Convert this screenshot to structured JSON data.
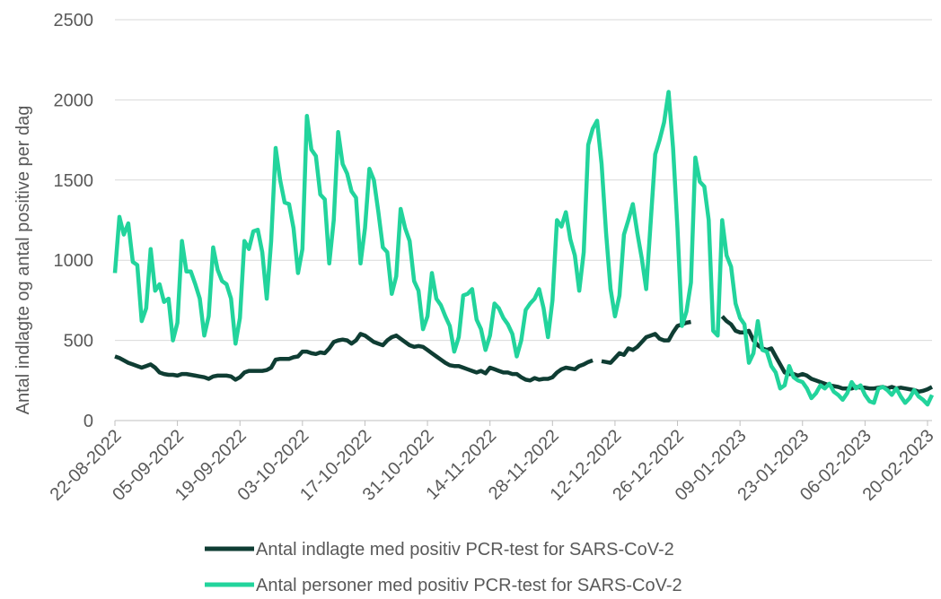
{
  "chart_data": {
    "type": "line",
    "y_label": "Antal indlagte og antal positive per dag",
    "x": [
      "22-08-2022",
      "23-08-2022",
      "24-08-2022",
      "25-08-2022",
      "26-08-2022",
      "27-08-2022",
      "28-08-2022",
      "29-08-2022",
      "30-08-2022",
      "31-08-2022",
      "01-09-2022",
      "02-09-2022",
      "03-09-2022",
      "04-09-2022",
      "05-09-2022",
      "06-09-2022",
      "07-09-2022",
      "08-09-2022",
      "09-09-2022",
      "10-09-2022",
      "11-09-2022",
      "12-09-2022",
      "13-09-2022",
      "14-09-2022",
      "15-09-2022",
      "16-09-2022",
      "17-09-2022",
      "18-09-2022",
      "19-09-2022",
      "20-09-2022",
      "21-09-2022",
      "22-09-2022",
      "23-09-2022",
      "24-09-2022",
      "25-09-2022",
      "26-09-2022",
      "27-09-2022",
      "28-09-2022",
      "29-09-2022",
      "30-09-2022",
      "01-10-2022",
      "02-10-2022",
      "03-10-2022",
      "04-10-2022",
      "05-10-2022",
      "06-10-2022",
      "07-10-2022",
      "08-10-2022",
      "09-10-2022",
      "10-10-2022",
      "11-10-2022",
      "12-10-2022",
      "13-10-2022",
      "14-10-2022",
      "15-10-2022",
      "16-10-2022",
      "17-10-2022",
      "18-10-2022",
      "19-10-2022",
      "20-10-2022",
      "21-10-2022",
      "22-10-2022",
      "23-10-2022",
      "24-10-2022",
      "25-10-2022",
      "26-10-2022",
      "27-10-2022",
      "28-10-2022",
      "29-10-2022",
      "30-10-2022",
      "31-10-2022",
      "01-11-2022",
      "02-11-2022",
      "03-11-2022",
      "04-11-2022",
      "05-11-2022",
      "06-11-2022",
      "07-11-2022",
      "08-11-2022",
      "09-11-2022",
      "10-11-2022",
      "11-11-2022",
      "12-11-2022",
      "13-11-2022",
      "14-11-2022",
      "15-11-2022",
      "16-11-2022",
      "17-11-2022",
      "18-11-2022",
      "19-11-2022",
      "20-11-2022",
      "21-11-2022",
      "22-11-2022",
      "23-11-2022",
      "24-11-2022",
      "25-11-2022",
      "26-11-2022",
      "27-11-2022",
      "28-11-2022",
      "29-11-2022",
      "30-11-2022",
      "01-12-2022",
      "02-12-2022",
      "03-12-2022",
      "04-12-2022",
      "05-12-2022",
      "06-12-2022",
      "07-12-2022",
      "08-12-2022",
      "09-12-2022",
      "10-12-2022",
      "11-12-2022",
      "12-12-2022",
      "13-12-2022",
      "14-12-2022",
      "15-12-2022",
      "16-12-2022",
      "17-12-2022",
      "18-12-2022",
      "19-12-2022",
      "20-12-2022",
      "21-12-2022",
      "22-12-2022",
      "23-12-2022",
      "24-12-2022",
      "25-12-2022",
      "26-12-2022",
      "27-12-2022",
      "28-12-2022",
      "29-12-2022",
      "30-12-2022",
      "31-12-2022",
      "01-01-2023",
      "02-01-2023",
      "03-01-2023",
      "04-01-2023",
      "05-01-2023",
      "06-01-2023",
      "07-01-2023",
      "08-01-2023",
      "09-01-2023",
      "10-01-2023",
      "11-01-2023",
      "12-01-2023",
      "13-01-2023",
      "14-01-2023",
      "15-01-2023",
      "16-01-2023",
      "17-01-2023",
      "18-01-2023",
      "19-01-2023",
      "20-01-2023",
      "21-01-2023",
      "22-01-2023",
      "23-01-2023",
      "24-01-2023",
      "25-01-2023",
      "26-01-2023",
      "27-01-2023",
      "28-01-2023",
      "29-01-2023",
      "30-01-2023",
      "31-01-2023",
      "01-02-2023",
      "02-02-2023",
      "03-02-2023",
      "04-02-2023",
      "05-02-2023",
      "06-02-2023",
      "07-02-2023",
      "08-02-2023",
      "09-02-2023",
      "10-02-2023",
      "11-02-2023",
      "12-02-2023",
      "13-02-2023",
      "14-02-2023",
      "15-02-2023",
      "16-02-2023",
      "17-02-2023",
      "18-02-2023",
      "19-02-2023",
      "20-02-2023",
      "21-02-2023"
    ],
    "xticks": [
      "22-08-2022",
      "05-09-2022",
      "19-09-2022",
      "03-10-2022",
      "17-10-2022",
      "31-10-2022",
      "14-11-2022",
      "28-11-2022",
      "12-12-2022",
      "26-12-2022",
      "09-01-2023",
      "23-01-2023",
      "06-02-2023",
      "20-02-2023"
    ],
    "ylim": [
      0,
      2500
    ],
    "yticks": [
      0,
      500,
      1000,
      1500,
      2000,
      2500
    ],
    "grid": true,
    "series": [
      {
        "name": "Antal indlagte med positiv PCR-test for SARS-CoV-2",
        "color": "#0f3d33",
        "values": [
          400,
          390,
          375,
          360,
          350,
          340,
          330,
          340,
          350,
          330,
          300,
          290,
          285,
          285,
          280,
          290,
          290,
          285,
          280,
          275,
          270,
          260,
          275,
          280,
          280,
          280,
          275,
          255,
          270,
          300,
          310,
          310,
          310,
          310,
          315,
          330,
          380,
          385,
          385,
          385,
          395,
          400,
          430,
          430,
          420,
          415,
          425,
          420,
          450,
          490,
          500,
          505,
          500,
          480,
          500,
          540,
          530,
          510,
          490,
          480,
          470,
          500,
          520,
          530,
          510,
          490,
          470,
          460,
          465,
          460,
          440,
          420,
          400,
          380,
          360,
          345,
          340,
          340,
          330,
          320,
          310,
          300,
          310,
          295,
          330,
          320,
          310,
          300,
          300,
          290,
          290,
          270,
          255,
          250,
          265,
          255,
          260,
          260,
          270,
          300,
          320,
          330,
          325,
          320,
          340,
          350,
          365,
          375,
          null,
          370,
          365,
          360,
          390,
          420,
          410,
          450,
          440,
          460,
          490,
          520,
          530,
          540,
          510,
          500,
          500,
          550,
          590,
          600,
          610,
          615,
          null,
          null,
          null,
          null,
          null,
          null,
          650,
          620,
          600,
          560,
          550,
          550,
          560,
          500,
          470,
          450,
          440,
          450,
          400,
          350,
          300,
          290,
          290,
          280,
          290,
          280,
          260,
          250,
          240,
          230,
          220,
          215,
          210,
          200,
          200,
          200,
          210,
          205,
          205,
          200,
          200,
          205,
          210,
          200,
          210,
          200,
          205,
          200,
          195,
          190,
          180,
          185,
          195,
          210
        ]
      },
      {
        "name": "Antal personer med positiv PCR-test for SARS-CoV-2",
        "color": "#22d49c",
        "values": [
          920,
          1270,
          1160,
          1230,
          990,
          970,
          620,
          700,
          1070,
          810,
          850,
          740,
          760,
          500,
          610,
          1120,
          930,
          930,
          850,
          760,
          530,
          650,
          1080,
          940,
          870,
          850,
          760,
          480,
          640,
          1120,
          1070,
          1180,
          1190,
          1050,
          760,
          1120,
          1700,
          1500,
          1360,
          1350,
          1200,
          920,
          1070,
          1900,
          1690,
          1650,
          1410,
          1380,
          980,
          1250,
          1800,
          1600,
          1540,
          1430,
          1390,
          980,
          1200,
          1570,
          1500,
          1300,
          1080,
          1050,
          790,
          900,
          1320,
          1200,
          1120,
          870,
          810,
          570,
          650,
          920,
          760,
          720,
          650,
          590,
          430,
          520,
          780,
          790,
          820,
          630,
          570,
          440,
          530,
          730,
          700,
          640,
          600,
          540,
          400,
          500,
          690,
          730,
          760,
          820,
          700,
          520,
          750,
          1250,
          1210,
          1300,
          1130,
          1030,
          810,
          1050,
          1720,
          1820,
          1870,
          1600,
          1170,
          820,
          650,
          780,
          1160,
          1250,
          1350,
          1170,
          1010,
          820,
          1240,
          1660,
          1750,
          1860,
          2050,
          1700,
          1200,
          590,
          680,
          860,
          1640,
          1490,
          1460,
          1250,
          560,
          530,
          1250,
          1030,
          960,
          730,
          640,
          600,
          360,
          420,
          620,
          440,
          430,
          340,
          300,
          200,
          220,
          340,
          270,
          250,
          240,
          200,
          140,
          170,
          220,
          200,
          230,
          180,
          160,
          130,
          170,
          240,
          200,
          220,
          160,
          120,
          110,
          200,
          210,
          190,
          160,
          200,
          150,
          110,
          140,
          190,
          150,
          130,
          100,
          160
        ]
      }
    ]
  }
}
